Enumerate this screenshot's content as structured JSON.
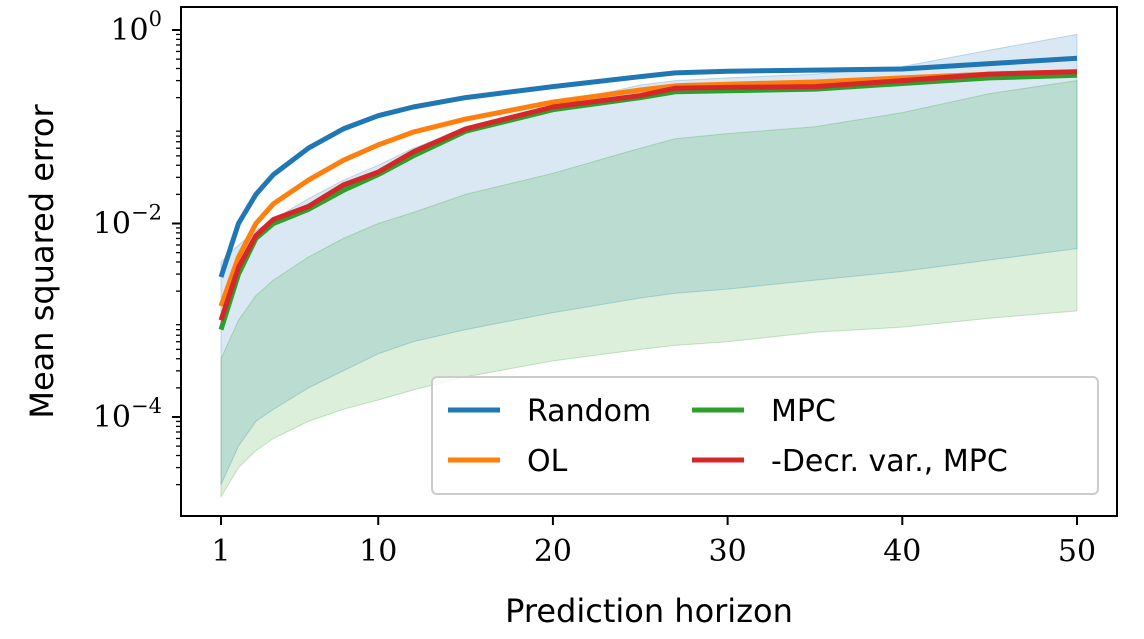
{
  "chart_data": {
    "type": "line",
    "title": "",
    "xlabel": "Prediction horizon",
    "ylabel": "Mean squared error",
    "xlim": [
      1,
      50
    ],
    "ylim": [
      1e-05,
      1
    ],
    "y_scale": "log",
    "x_ticks": [
      {
        "value": 1,
        "label": "1"
      },
      {
        "value": 10,
        "label": "10"
      },
      {
        "value": 20,
        "label": "20"
      },
      {
        "value": 30,
        "label": "30"
      },
      {
        "value": 40,
        "label": "40"
      },
      {
        "value": 50,
        "label": "50"
      }
    ],
    "y_ticks": [
      {
        "value": 1,
        "base": "10",
        "exp": "0"
      },
      {
        "value": 0.01,
        "base": "10",
        "exp": "−2"
      },
      {
        "value": 0.0001,
        "base": "10",
        "exp": "−4"
      }
    ],
    "grid": false,
    "legend_position": "lower-right",
    "legend_columns": 2,
    "x": [
      1,
      2,
      3,
      4,
      6,
      8,
      10,
      12,
      15,
      20,
      25,
      27,
      30,
      35,
      40,
      45,
      50
    ],
    "series": [
      {
        "name": "Random",
        "color": "#1f77b4",
        "values": [
          0.0028,
          0.01,
          0.02,
          0.032,
          0.06,
          0.095,
          0.13,
          0.16,
          0.2,
          0.26,
          0.33,
          0.36,
          0.375,
          0.385,
          0.395,
          0.45,
          0.51
        ],
        "band": {
          "lower": [
            2e-05,
            5e-05,
            9e-05,
            0.00012,
            0.0002,
            0.0003,
            0.00045,
            0.0006,
            0.0008,
            0.0012,
            0.0017,
            0.0019,
            0.0021,
            0.0026,
            0.0032,
            0.0042,
            0.0055
          ],
          "upper": [
            0.004,
            0.006,
            0.0085,
            0.011,
            0.018,
            0.028,
            0.04,
            0.06,
            0.095,
            0.17,
            0.27,
            0.3,
            0.32,
            0.35,
            0.42,
            0.62,
            0.9
          ]
        }
      },
      {
        "name": "OL",
        "color": "#ff7f0e",
        "values": [
          0.0014,
          0.0045,
          0.01,
          0.016,
          0.028,
          0.045,
          0.065,
          0.088,
          0.12,
          0.18,
          0.24,
          0.265,
          0.275,
          0.29,
          0.32,
          0.35,
          0.37
        ]
      },
      {
        "name": "MPC",
        "color": "#2ca02c",
        "values": [
          0.0008,
          0.003,
          0.007,
          0.01,
          0.014,
          0.022,
          0.032,
          0.05,
          0.09,
          0.15,
          0.2,
          0.23,
          0.235,
          0.245,
          0.28,
          0.32,
          0.34
        ],
        "band": {
          "lower": [
            1.5e-05,
            3e-05,
            4.5e-05,
            6e-05,
            9e-05,
            0.00012,
            0.00015,
            0.00019,
            0.00026,
            0.00038,
            0.0005,
            0.00055,
            0.0006,
            0.00075,
            0.00085,
            0.00105,
            0.00125
          ],
          "upper": [
            0.0004,
            0.001,
            0.0018,
            0.0026,
            0.0045,
            0.007,
            0.01,
            0.013,
            0.02,
            0.033,
            0.06,
            0.075,
            0.085,
            0.1,
            0.14,
            0.22,
            0.3
          ]
        }
      },
      {
        "name": "-Decr. var., MPC",
        "color": "#d62728",
        "values": [
          0.001,
          0.0035,
          0.0075,
          0.011,
          0.015,
          0.025,
          0.034,
          0.055,
          0.095,
          0.16,
          0.21,
          0.25,
          0.255,
          0.26,
          0.3,
          0.35,
          0.37
        ]
      }
    ]
  }
}
